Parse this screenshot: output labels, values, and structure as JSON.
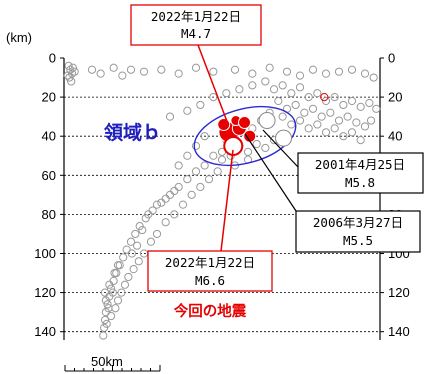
{
  "chart_data": {
    "type": "scatter",
    "unit_label": "(km)",
    "y_axis": {
      "ticks": [
        0,
        20,
        40,
        60,
        80,
        100,
        120,
        140
      ],
      "ylim": [
        0,
        145
      ],
      "inverted": true,
      "labels_left": [
        "0",
        "20",
        "40",
        "60",
        "80",
        "100",
        "120",
        "140"
      ],
      "labels_right": [
        "0",
        "20",
        "40",
        "60",
        "80",
        "100",
        "120",
        "140"
      ],
      "grid": "dashed-horizontal"
    },
    "scale_bar": "50km",
    "region_label": "領域ｂ",
    "current_label": "今回の地震",
    "background_series": {
      "name": "",
      "color": "#999999",
      "points": [
        [
          3,
          4
        ],
        [
          5,
          6
        ],
        [
          7,
          8
        ],
        [
          4,
          10
        ],
        [
          6,
          12
        ],
        [
          8,
          5
        ],
        [
          10,
          7
        ],
        [
          2,
          9
        ],
        [
          30,
          6
        ],
        [
          40,
          8
        ],
        [
          55,
          5
        ],
        [
          65,
          9
        ],
        [
          75,
          6
        ],
        [
          90,
          7
        ],
        [
          110,
          6
        ],
        [
          130,
          8
        ],
        [
          150,
          5
        ],
        [
          170,
          7
        ],
        [
          195,
          6
        ],
        [
          215,
          8
        ],
        [
          235,
          5
        ],
        [
          255,
          7
        ],
        [
          270,
          9
        ],
        [
          285,
          6
        ],
        [
          300,
          8
        ],
        [
          315,
          7
        ],
        [
          330,
          6
        ],
        [
          345,
          8
        ],
        [
          355,
          10
        ],
        [
          120,
          30
        ],
        [
          140,
          27
        ],
        [
          155,
          24
        ],
        [
          170,
          20
        ],
        [
          185,
          18
        ],
        [
          200,
          16
        ],
        [
          215,
          14
        ],
        [
          230,
          12
        ],
        [
          240,
          16
        ],
        [
          250,
          14
        ],
        [
          260,
          18
        ],
        [
          270,
          15
        ],
        [
          280,
          20
        ],
        [
          290,
          18
        ],
        [
          300,
          22
        ],
        [
          310,
          20
        ],
        [
          320,
          24
        ],
        [
          330,
          22
        ],
        [
          340,
          25
        ],
        [
          350,
          23
        ],
        [
          358,
          26
        ],
        [
          245,
          22
        ],
        [
          255,
          26
        ],
        [
          265,
          24
        ],
        [
          275,
          28
        ],
        [
          285,
          26
        ],
        [
          295,
          30
        ],
        [
          305,
          28
        ],
        [
          315,
          32
        ],
        [
          325,
          30
        ],
        [
          335,
          33
        ],
        [
          345,
          35
        ],
        [
          352,
          32
        ],
        [
          250,
          30
        ],
        [
          260,
          34
        ],
        [
          270,
          32
        ],
        [
          280,
          36
        ],
        [
          290,
          34
        ],
        [
          300,
          38
        ],
        [
          310,
          36
        ],
        [
          320,
          40
        ],
        [
          330,
          38
        ],
        [
          340,
          42
        ],
        [
          235,
          28
        ],
        [
          225,
          32
        ],
        [
          215,
          36
        ],
        [
          205,
          38
        ],
        [
          195,
          40
        ],
        [
          185,
          42
        ],
        [
          200,
          45
        ],
        [
          210,
          48
        ],
        [
          220,
          44
        ],
        [
          230,
          46
        ],
        [
          240,
          42
        ],
        [
          190,
          50
        ],
        [
          180,
          52
        ],
        [
          170,
          50
        ],
        [
          160,
          55
        ],
        [
          150,
          58
        ],
        [
          140,
          62
        ],
        [
          130,
          66
        ],
        [
          120,
          70
        ],
        [
          110,
          74
        ],
        [
          100,
          78
        ],
        [
          92,
          82
        ],
        [
          85,
          86
        ],
        [
          80,
          90
        ],
        [
          75,
          94
        ],
        [
          70,
          98
        ],
        [
          66,
          102
        ],
        [
          62,
          106
        ],
        [
          58,
          110
        ],
        [
          55,
          114
        ],
        [
          52,
          118
        ],
        [
          50,
          122
        ],
        [
          48,
          126
        ],
        [
          46,
          130
        ],
        [
          45,
          134
        ],
        [
          44,
          138
        ],
        [
          43,
          142
        ],
        [
          175,
          58
        ],
        [
          165,
          62
        ],
        [
          155,
          66
        ],
        [
          145,
          70
        ],
        [
          135,
          75
        ],
        [
          125,
          80
        ],
        [
          115,
          84
        ],
        [
          105,
          90
        ],
        [
          98,
          94
        ],
        [
          90,
          100
        ],
        [
          84,
          104
        ],
        [
          78,
          108
        ],
        [
          72,
          112
        ],
        [
          68,
          116
        ],
        [
          64,
          120
        ],
        [
          60,
          124
        ],
        [
          57,
          128
        ],
        [
          180,
          48
        ],
        [
          195,
          55
        ],
        [
          210,
          52
        ],
        [
          150,
          45
        ],
        [
          160,
          40
        ],
        [
          140,
          50
        ],
        [
          130,
          55
        ],
        [
          50,
          116
        ],
        [
          54,
          120
        ],
        [
          46,
          124
        ],
        [
          49,
          128
        ],
        [
          52,
          132
        ],
        [
          47,
          136
        ],
        [
          45,
          120
        ],
        [
          56,
          110
        ],
        [
          60,
          106
        ],
        [
          95,
          80
        ],
        [
          105,
          75
        ],
        [
          115,
          72
        ],
        [
          125,
          68
        ],
        [
          88,
          88
        ],
        [
          82,
          96
        ],
        [
          76,
          100
        ]
      ]
    },
    "highlight_series": {
      "name": "",
      "color": "#e60000",
      "points": [
        [
          188,
          38,
          10
        ],
        [
          200,
          36,
          7
        ],
        [
          212,
          40,
          6
        ],
        [
          182,
          34,
          6
        ],
        [
          196,
          32,
          5
        ],
        [
          206,
          33,
          6
        ]
      ]
    },
    "historical_events": [
      {
        "x": 232,
        "y": 32,
        "size": 8,
        "color": "#ffffff"
      },
      {
        "x": 251,
        "y": 41,
        "size": 8,
        "color": "#ffffff"
      }
    ],
    "annotations": [
      {
        "id": "jan22_m47",
        "lines": [
          "2022年1月22日",
          "M4.7"
        ],
        "border": "#e60000"
      },
      {
        "id": "jan22_m66",
        "lines": [
          "2022年1月22日",
          "M6.6"
        ],
        "border": "#e60000"
      },
      {
        "id": "apr2001",
        "lines": [
          "2001年4月25日",
          "M5.8"
        ],
        "border": "#000000"
      },
      {
        "id": "mar2006",
        "lines": [
          "2006年3月27日",
          "M5.5"
        ],
        "border": "#000000"
      }
    ]
  }
}
